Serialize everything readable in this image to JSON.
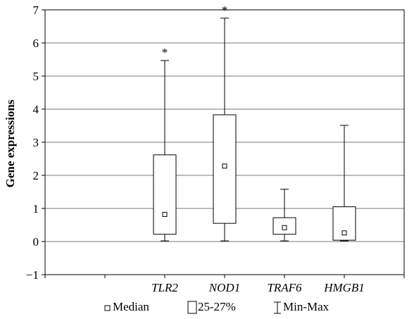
{
  "chart_data": {
    "type": "boxplot",
    "ylabel": "Gene expressions",
    "ylim": [
      -1,
      7
    ],
    "yticks": [
      "7",
      "6",
      "5",
      "4",
      "3",
      "2",
      "1",
      "0",
      "−1"
    ],
    "ytick_values": [
      7,
      6,
      5,
      4,
      3,
      2,
      1,
      0,
      -1
    ],
    "grid": "horizontal",
    "categories": [
      "TLR2",
      "NOD1",
      "TRAF6",
      "HMGB1"
    ],
    "boxes": [
      {
        "category": "TLR2",
        "min": 0.02,
        "q1": 0.22,
        "median": 0.82,
        "q3": 2.62,
        "max": 5.47,
        "outlier_marker": "*"
      },
      {
        "category": "NOD1",
        "min": 0.02,
        "q1": 0.55,
        "median": 2.28,
        "q3": 3.83,
        "max": 6.75,
        "outlier_marker": "*"
      },
      {
        "category": "TRAF6",
        "min": 0.02,
        "q1": 0.22,
        "median": 0.42,
        "q3": 0.72,
        "max": 1.58,
        "outlier_marker": ""
      },
      {
        "category": "HMGB1",
        "min": 0.02,
        "q1": 0.04,
        "median": 0.26,
        "q3": 1.05,
        "max": 3.51,
        "outlier_marker": ""
      }
    ],
    "legend": {
      "position": "bottom",
      "items": [
        {
          "symbol": "small-square",
          "label": "Median"
        },
        {
          "symbol": "box",
          "label": "25-27%"
        },
        {
          "symbol": "whisker",
          "label": "Min-Max"
        }
      ]
    }
  }
}
